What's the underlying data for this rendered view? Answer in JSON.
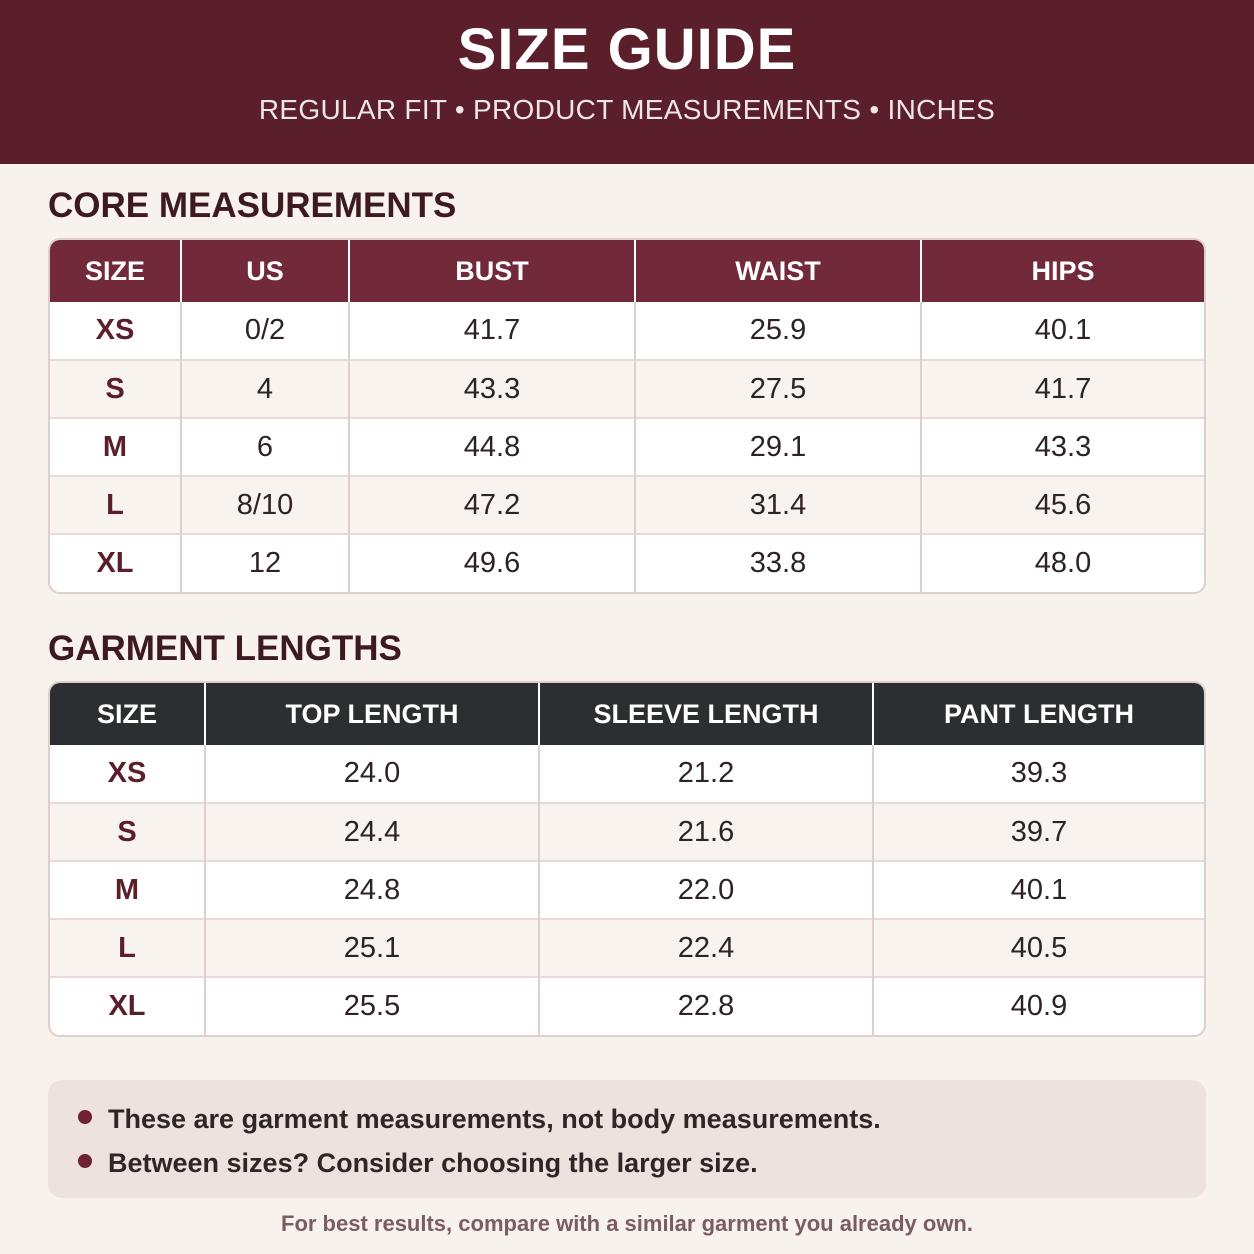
{
  "header": {
    "title": "SIZE GUIDE",
    "subtitle": "REGULAR FIT • PRODUCT MEASUREMENTS • INCHES"
  },
  "core": {
    "title": "CORE MEASUREMENTS",
    "columns": [
      "SIZE",
      "US",
      "BUST",
      "WAIST",
      "HIPS"
    ],
    "rows": [
      [
        "XS",
        "0/2",
        "41.7",
        "25.9",
        "40.1"
      ],
      [
        "S",
        "4",
        "43.3",
        "27.5",
        "41.7"
      ],
      [
        "M",
        "6",
        "44.8",
        "29.1",
        "43.3"
      ],
      [
        "L",
        "8/10",
        "47.2",
        "31.4",
        "45.6"
      ],
      [
        "XL",
        "12",
        "49.6",
        "33.8",
        "48.0"
      ]
    ]
  },
  "lengths": {
    "title": "GARMENT LENGTHS",
    "columns": [
      "SIZE",
      "TOP LENGTH",
      "SLEEVE LENGTH",
      "PANT LENGTH"
    ],
    "rows": [
      [
        "XS",
        "24.0",
        "21.2",
        "39.3"
      ],
      [
        "S",
        "24.4",
        "21.6",
        "39.7"
      ],
      [
        "M",
        "24.8",
        "22.0",
        "40.1"
      ],
      [
        "L",
        "25.1",
        "22.4",
        "40.5"
      ],
      [
        "XL",
        "25.5",
        "22.8",
        "40.9"
      ]
    ]
  },
  "notes": [
    "These are garment measurements, not body measurements.",
    "Between sizes? Consider choosing the larger size."
  ],
  "footer": "For best results, compare with a similar garment you already own.",
  "colors": {
    "header_bg": "#5b1f2b",
    "core_header_bg": "#722a3b",
    "lengths_header_bg": "#2d2e32",
    "page_bg": "#f7f2ec",
    "size_text": "#5b1f2b"
  }
}
